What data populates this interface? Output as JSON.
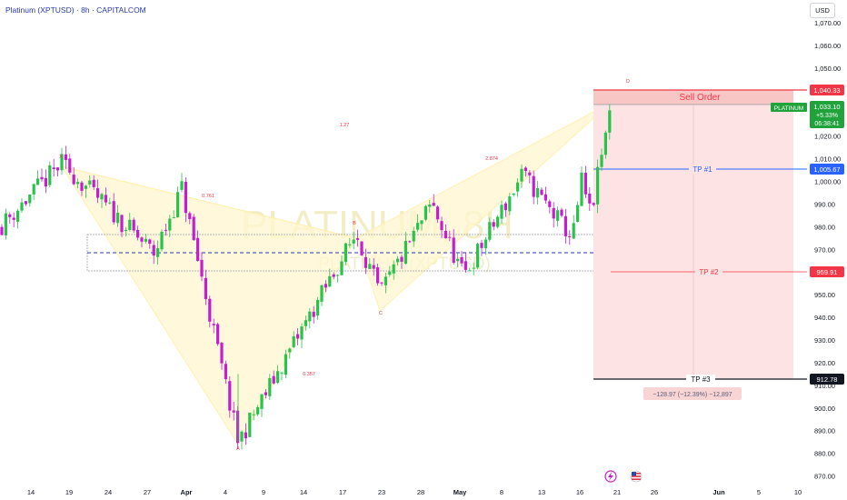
{
  "header": {
    "title": "Platinum (XPTUSD) · 8h · CAPITALCOM",
    "currency": "USD"
  },
  "watermark": {
    "line1": "PLATINUM, 8H",
    "line2": "PLATINUM (XPTUSD)"
  },
  "price_badges": {
    "sell": "1,040.33",
    "last_symbol": "PLATINUM",
    "last_price": "1,033.10",
    "last_change": "+5.33%",
    "last_timer": "06:38:41",
    "tp1": "1,005.67",
    "tp2": "959.91",
    "tp3": "912.78"
  },
  "position": {
    "sell_label": "Sell Order",
    "tp1_label": "TP #1",
    "tp2_label": "TP #2",
    "tp3_label": "TP #3",
    "stats": "−128.97 (−12.39%) −12,897"
  },
  "harmonic": {
    "X": "X",
    "A": "A",
    "B": "B",
    "C": "C",
    "D": "D",
    "r_xb": "0.761",
    "r_ac": "0.357",
    "r_xd": "1.27",
    "r_bd": "2.874"
  },
  "colors": {
    "bull": "#27c34b",
    "bear": "#c41ecf",
    "pattern": "#fff2b8",
    "sell_zone": "#fde2e2",
    "sell_line": "#f23645",
    "tp1_line": "#2962ff"
  },
  "chart_data": {
    "type": "candlestick",
    "title": "Platinum (XPTUSD) · 8h · CAPITALCOM",
    "ylabel": "USD",
    "ylim": [
      865,
      1080
    ],
    "y_ticks": [
      870,
      880,
      890,
      900,
      910,
      920,
      930,
      940,
      950,
      960,
      970,
      980,
      990,
      1000,
      1010,
      1020,
      1030,
      1040,
      1050,
      1060,
      1070
    ],
    "x_tick_labels": [
      "14",
      "19",
      "24",
      "27",
      "Apr",
      "4",
      "9",
      "14",
      "17",
      "23",
      "28",
      "May",
      "8",
      "13",
      "16",
      "21",
      "26",
      "Jun",
      "5",
      "10"
    ],
    "series": [
      {
        "name": "XPTUSD",
        "pivots": [
          {
            "label": "start",
            "value": 980
          },
          {
            "label": "X",
            "value": 1008
          },
          {
            "label": "",
            "value": 968
          },
          {
            "label": "",
            "value": 997
          },
          {
            "label": "A",
            "value": 885
          },
          {
            "label": "B",
            "value": 977
          },
          {
            "label": "C",
            "value": 950
          },
          {
            "label": "",
            "value": 990
          },
          {
            "label": "",
            "value": 958
          },
          {
            "label": "",
            "value": 1003
          },
          {
            "label": "",
            "value": 975
          },
          {
            "label": "",
            "value": 1000
          },
          {
            "label": "",
            "value": 985
          },
          {
            "label": "D",
            "value": 1034
          }
        ]
      }
    ],
    "harmonic_pattern": {
      "points": {
        "X": 1008,
        "A": 885,
        "B": 977,
        "C": 950,
        "D": 1034
      },
      "ratios": {
        "XB": "0.761",
        "AC": "0.357",
        "XD": "1.27",
        "BD": "2.874"
      }
    },
    "position": {
      "side": "short",
      "entry": 1033.1,
      "stop": 1040.33,
      "targets": [
        1005.67,
        959.91,
        912.78
      ],
      "stats": "−128.97 (−12.39%) −12,897"
    },
    "range_box": {
      "top": 977,
      "bottom": 959,
      "midline": 969
    },
    "last_price": 1033.1,
    "change_pct": 5.33,
    "grid": false,
    "legend": "none"
  }
}
